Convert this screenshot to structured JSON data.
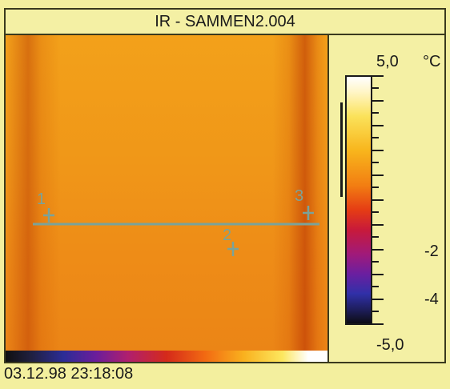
{
  "window": {
    "title": "IR - SAMMEN2.004"
  },
  "image": {
    "markers": [
      {
        "label": "1"
      },
      {
        "label": "2"
      },
      {
        "label": "3"
      }
    ]
  },
  "scale": {
    "max_label": "5,0",
    "unit": "°C",
    "labels": [
      "-2",
      "-4"
    ],
    "min_label": "-5,0"
  },
  "status": {
    "timestamp": "03.12.98 23:18:08"
  }
}
